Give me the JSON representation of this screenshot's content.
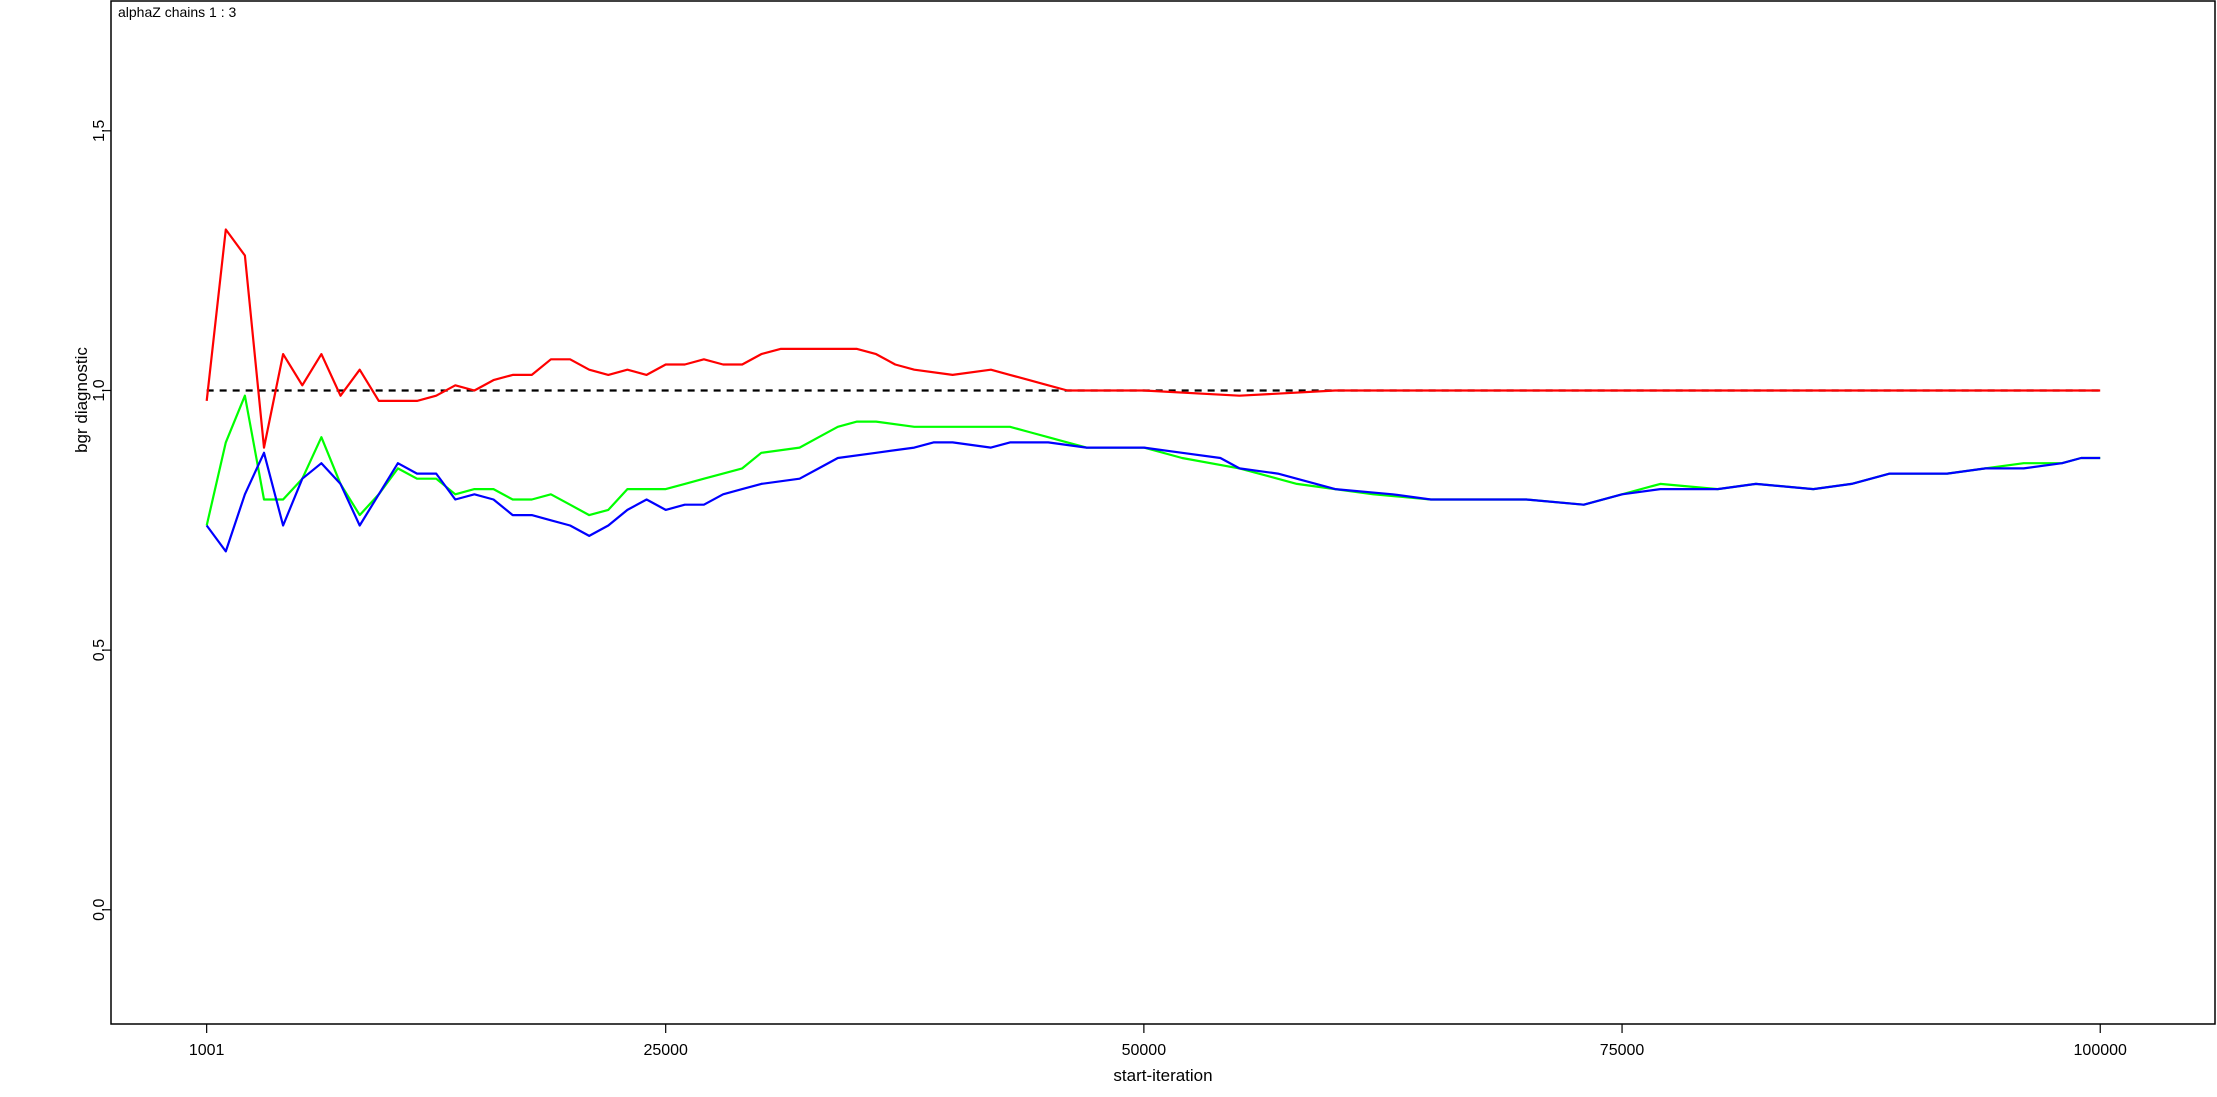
{
  "chart_data": {
    "type": "line",
    "title": "alphaZ chains 1 : 3",
    "xlabel": "start-iteration",
    "ylabel": "bgr diagnostic",
    "xlim": [
      -4000,
      106000
    ],
    "ylim": [
      -0.22,
      1.75
    ],
    "x_ticks": [
      1001,
      25000,
      50000,
      75000,
      100000
    ],
    "x_tick_labels": [
      "1001",
      "25000",
      "50000",
      "75000",
      "100000"
    ],
    "y_ticks": [
      0.0,
      0.5,
      1.0,
      1.5
    ],
    "y_tick_labels": [
      "0.0",
      "0.5",
      "1.0",
      "1.5"
    ],
    "grid": false,
    "reference_line": {
      "y": 1.0,
      "style": "dashed",
      "color": "#000000",
      "x_range": [
        1001,
        100000
      ]
    },
    "series": [
      {
        "color": "#ff0000",
        "points": [
          [
            1001,
            0.98
          ],
          [
            2000,
            1.31
          ],
          [
            3000,
            1.26
          ],
          [
            4000,
            0.89
          ],
          [
            5000,
            1.07
          ],
          [
            6000,
            1.01
          ],
          [
            7000,
            1.07
          ],
          [
            8000,
            0.99
          ],
          [
            9000,
            1.04
          ],
          [
            10000,
            0.98
          ],
          [
            12000,
            0.98
          ],
          [
            13000,
            0.99
          ],
          [
            14000,
            1.01
          ],
          [
            15000,
            1.0
          ],
          [
            16000,
            1.02
          ],
          [
            17000,
            1.03
          ],
          [
            18000,
            1.03
          ],
          [
            19000,
            1.06
          ],
          [
            20000,
            1.06
          ],
          [
            21000,
            1.04
          ],
          [
            22000,
            1.03
          ],
          [
            23000,
            1.04
          ],
          [
            24000,
            1.03
          ],
          [
            25000,
            1.05
          ],
          [
            26000,
            1.05
          ],
          [
            27000,
            1.06
          ],
          [
            28000,
            1.05
          ],
          [
            29000,
            1.05
          ],
          [
            30000,
            1.07
          ],
          [
            31000,
            1.08
          ],
          [
            32000,
            1.08
          ],
          [
            33000,
            1.08
          ],
          [
            34000,
            1.08
          ],
          [
            35000,
            1.08
          ],
          [
            36000,
            1.07
          ],
          [
            37000,
            1.05
          ],
          [
            38000,
            1.04
          ],
          [
            40000,
            1.03
          ],
          [
            42000,
            1.04
          ],
          [
            43000,
            1.03
          ],
          [
            44000,
            1.02
          ],
          [
            45000,
            1.01
          ],
          [
            46000,
            1.0
          ],
          [
            48000,
            1.0
          ],
          [
            50000,
            1.0
          ],
          [
            55000,
            0.99
          ],
          [
            60000,
            1.0
          ],
          [
            65000,
            1.0
          ],
          [
            70000,
            1.0
          ],
          [
            75000,
            1.0
          ],
          [
            80000,
            1.0
          ],
          [
            86000,
            1.0
          ],
          [
            87000,
            1.0
          ],
          [
            88000,
            1.0
          ],
          [
            95000,
            1.0
          ],
          [
            97000,
            1.0
          ],
          [
            98000,
            1.0
          ],
          [
            100000,
            1.0
          ]
        ]
      },
      {
        "color": "#00ff00",
        "points": [
          [
            1001,
            0.74
          ],
          [
            2000,
            0.9
          ],
          [
            3000,
            0.99
          ],
          [
            4000,
            0.79
          ],
          [
            5000,
            0.79
          ],
          [
            6000,
            0.83
          ],
          [
            7000,
            0.91
          ],
          [
            8000,
            0.82
          ],
          [
            9000,
            0.76
          ],
          [
            10000,
            0.8
          ],
          [
            11000,
            0.85
          ],
          [
            12000,
            0.83
          ],
          [
            13000,
            0.83
          ],
          [
            14000,
            0.8
          ],
          [
            15000,
            0.81
          ],
          [
            16000,
            0.81
          ],
          [
            17000,
            0.79
          ],
          [
            18000,
            0.79
          ],
          [
            19000,
            0.8
          ],
          [
            20000,
            0.78
          ],
          [
            21000,
            0.76
          ],
          [
            22000,
            0.77
          ],
          [
            23000,
            0.81
          ],
          [
            24000,
            0.81
          ],
          [
            25000,
            0.81
          ],
          [
            26000,
            0.82
          ],
          [
            27000,
            0.83
          ],
          [
            28000,
            0.84
          ],
          [
            29000,
            0.85
          ],
          [
            30000,
            0.88
          ],
          [
            32000,
            0.89
          ],
          [
            33000,
            0.91
          ],
          [
            34000,
            0.93
          ],
          [
            35000,
            0.94
          ],
          [
            36000,
            0.94
          ],
          [
            38000,
            0.93
          ],
          [
            43000,
            0.93
          ],
          [
            44000,
            0.92
          ],
          [
            45000,
            0.91
          ],
          [
            46000,
            0.9
          ],
          [
            47000,
            0.89
          ],
          [
            50000,
            0.89
          ],
          [
            52000,
            0.87
          ],
          [
            55000,
            0.85
          ],
          [
            58000,
            0.82
          ],
          [
            60000,
            0.81
          ],
          [
            62000,
            0.8
          ],
          [
            65000,
            0.79
          ],
          [
            68000,
            0.79
          ],
          [
            70000,
            0.79
          ],
          [
            73000,
            0.78
          ],
          [
            75000,
            0.8
          ],
          [
            77000,
            0.82
          ],
          [
            80000,
            0.81
          ],
          [
            82000,
            0.82
          ],
          [
            85000,
            0.81
          ],
          [
            87000,
            0.82
          ],
          [
            89000,
            0.84
          ],
          [
            92000,
            0.84
          ],
          [
            94000,
            0.85
          ],
          [
            96000,
            0.86
          ],
          [
            98000,
            0.86
          ],
          [
            99000,
            0.87
          ],
          [
            100000,
            0.87
          ]
        ]
      },
      {
        "color": "#0000ff",
        "points": [
          [
            1001,
            0.74
          ],
          [
            2000,
            0.69
          ],
          [
            3000,
            0.8
          ],
          [
            4000,
            0.88
          ],
          [
            5000,
            0.74
          ],
          [
            6000,
            0.83
          ],
          [
            7000,
            0.86
          ],
          [
            8000,
            0.82
          ],
          [
            9000,
            0.74
          ],
          [
            10000,
            0.8
          ],
          [
            11000,
            0.86
          ],
          [
            12000,
            0.84
          ],
          [
            13000,
            0.84
          ],
          [
            14000,
            0.79
          ],
          [
            15000,
            0.8
          ],
          [
            16000,
            0.79
          ],
          [
            17000,
            0.76
          ],
          [
            18000,
            0.76
          ],
          [
            19000,
            0.75
          ],
          [
            20000,
            0.74
          ],
          [
            21000,
            0.72
          ],
          [
            22000,
            0.74
          ],
          [
            23000,
            0.77
          ],
          [
            24000,
            0.79
          ],
          [
            25000,
            0.77
          ],
          [
            26000,
            0.78
          ],
          [
            27000,
            0.78
          ],
          [
            28000,
            0.8
          ],
          [
            29000,
            0.81
          ],
          [
            30000,
            0.82
          ],
          [
            32000,
            0.83
          ],
          [
            33000,
            0.85
          ],
          [
            34000,
            0.87
          ],
          [
            36000,
            0.88
          ],
          [
            38000,
            0.89
          ],
          [
            39000,
            0.9
          ],
          [
            40000,
            0.9
          ],
          [
            42000,
            0.89
          ],
          [
            43000,
            0.9
          ],
          [
            45000,
            0.9
          ],
          [
            47000,
            0.89
          ],
          [
            50000,
            0.89
          ],
          [
            52000,
            0.88
          ],
          [
            54000,
            0.87
          ],
          [
            55000,
            0.85
          ],
          [
            57000,
            0.84
          ],
          [
            60000,
            0.81
          ],
          [
            63000,
            0.8
          ],
          [
            65000,
            0.79
          ],
          [
            68000,
            0.79
          ],
          [
            70000,
            0.79
          ],
          [
            73000,
            0.78
          ],
          [
            75000,
            0.8
          ],
          [
            77000,
            0.81
          ],
          [
            80000,
            0.81
          ],
          [
            82000,
            0.82
          ],
          [
            85000,
            0.81
          ],
          [
            87000,
            0.82
          ],
          [
            89000,
            0.84
          ],
          [
            92000,
            0.84
          ],
          [
            94000,
            0.85
          ],
          [
            96000,
            0.85
          ],
          [
            98000,
            0.86
          ],
          [
            99000,
            0.87
          ],
          [
            100000,
            0.87
          ]
        ]
      }
    ]
  }
}
